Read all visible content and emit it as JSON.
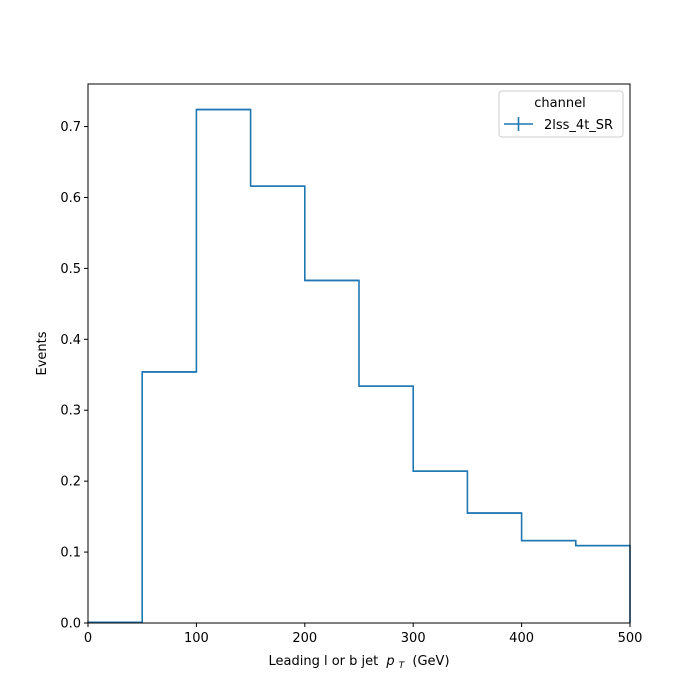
{
  "chart_data": {
    "type": "histogram",
    "title": "",
    "xlabel": "Leading l or b jet",
    "xlabel_math": "p",
    "xlabel_math_sub": "T",
    "xlabel_unit": "(GeV)",
    "ylabel": "Events",
    "xlim": [
      0,
      500
    ],
    "ylim": [
      0,
      0.76
    ],
    "grid": false,
    "xticks": [
      0,
      100,
      200,
      300,
      400,
      500
    ],
    "yticks": [
      0.0,
      0.1,
      0.2,
      0.3,
      0.4,
      0.5,
      0.6,
      0.7
    ],
    "ytick_labels": [
      "0.0",
      "0.1",
      "0.2",
      "0.3",
      "0.4",
      "0.5",
      "0.6",
      "0.7"
    ],
    "bin_edges": [
      0,
      50,
      100,
      150,
      200,
      250,
      300,
      350,
      400,
      450,
      500
    ],
    "series": [
      {
        "name": "2lss_4t_SR",
        "color": "#1f77b4",
        "values": [
          0.001,
          0.354,
          0.724,
          0.616,
          0.483,
          0.334,
          0.214,
          0.155,
          0.116,
          0.109
        ]
      }
    ],
    "legend": {
      "title": "channel",
      "position": "top-right"
    }
  }
}
